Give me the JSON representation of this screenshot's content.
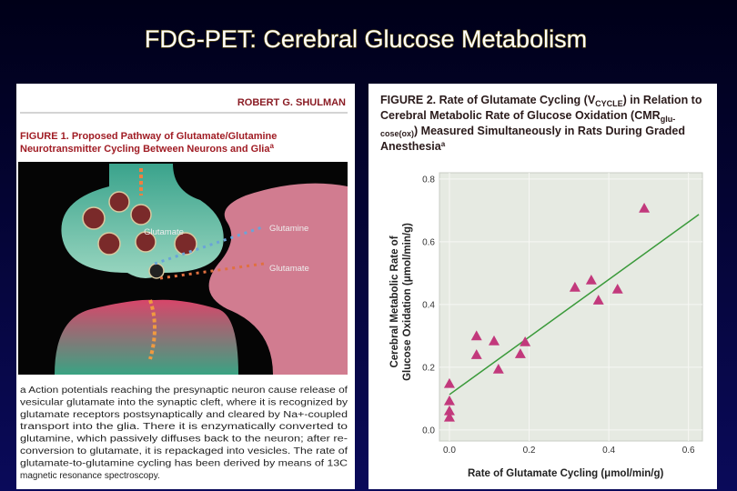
{
  "slide_title": "FDG-PET: Cerebral Glucose Metabolism",
  "figure_1": {
    "author": "ROBERT G. SHULMAN",
    "caption_lines": [
      [
        "FIGURE 1. Proposed Pathway of Glutamate/Glutamine"
      ],
      [
        "Neurotransmitter Cycling Between Neurons and Glia",
        "a"
      ]
    ],
    "diagram_labels": {
      "vesicle": "Glutamate",
      "glutamine": "Glutamine",
      "glutamate": "Glutamate"
    },
    "note_lines": [
      "a Action potentials reaching the presynaptic neuron cause release of",
      "vesicular glutamate into the synaptic cleft, where it is recognized by",
      "glutamate receptors postsynaptically and cleared by Na+-coupled",
      "transport into the glia. There it is enzymatically converted to",
      "glutamine, which passively diffuses back to the neuron; after re-",
      "conversion to glutamate, it is repackaged into vesicles. The rate of",
      "glutamate-to-glutamine cycling has been derived by means of 13C",
      "magnetic resonance spectroscopy."
    ]
  },
  "chart_data": {
    "type": "scatter",
    "title_lines": [
      [
        "FIGURE 2. Rate of Glutamate Cycling (V",
        "CYCLE",
        ") in Relation to"
      ],
      [
        "Cerebral Metabolic Rate of Glucose Oxidation (CMR",
        "glu-"
      ],
      [
        "cose(ox)",
        ") Measured Simultaneously in Rats During Graded"
      ],
      [
        "Anesthesia",
        "a"
      ]
    ],
    "x_label": "Rate of Glutamate Cycling (μmol/min/g)",
    "y_label_lines": [
      "Cerebral Metabolic Rate of",
      "Glucose Oxidation (μmol/min/g)"
    ],
    "xlim": [
      -0.025,
      0.635
    ],
    "ylim": [
      -0.035,
      0.82
    ],
    "xticks": [
      {
        "value": 0,
        "label": "0.0"
      },
      0.2,
      0.4,
      0.6
    ],
    "yticks": [
      {
        "value": 0,
        "label": "0.0"
      },
      0.2,
      0.4,
      0.6,
      0.8
    ],
    "color": "#c2397c",
    "x": [
      0,
      0,
      0,
      0,
      0.068,
      0.068,
      0.112,
      0.123,
      0.178,
      0.19,
      0.315,
      0.356,
      0.374,
      0.422,
      0.489
    ],
    "values": [
      0.148,
      0.093,
      0.061,
      0.041,
      0.3,
      0.24,
      0.284,
      0.194,
      0.243,
      0.281,
      0.455,
      0.478,
      0.414,
      0.449,
      0.707
    ],
    "fit_line": {
      "color": "#3a9a3a",
      "x": [
        0,
        0.626
      ],
      "values": [
        0.113,
        0.687
      ]
    }
  }
}
